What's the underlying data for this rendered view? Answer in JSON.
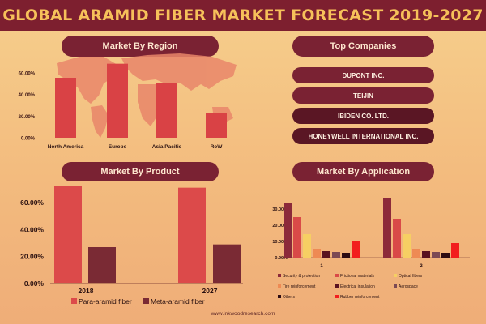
{
  "title": "GLOBAL ARAMID FIBER MARKET FORECAST 2019-2027",
  "footer": "www.inkwoodresearch.com",
  "colors": {
    "banner": "#7d1f2f",
    "title": "#f6c15a",
    "pill": "#7a2233",
    "map": "#e9866a"
  },
  "top_companies": {
    "heading": "Top Companies",
    "items": [
      "DUPONT INC.",
      "TEIJIN",
      "IBIDEN CO. LTD.",
      "HONEYWELL INTERNATIONAL INC."
    ]
  },
  "chart_data": [
    {
      "type": "bar",
      "title": "Market By Region",
      "categories": [
        "North America",
        "Europe",
        "Asia Pacific",
        "RoW"
      ],
      "values": [
        55.5,
        68.5,
        51.0,
        23.0
      ],
      "yticks": [
        "0.00%",
        "20.00%",
        "40.00%",
        "60.00%"
      ],
      "ylim": [
        0,
        70
      ],
      "color": "#d94245"
    },
    {
      "type": "bar",
      "title": "Market By Product",
      "categories": [
        "2018",
        "2027"
      ],
      "series": [
        {
          "name": "Para-aramid fiber",
          "values": [
            72.0,
            71.0
          ],
          "color": "#dc4a4a"
        },
        {
          "name": "Meta-aramid fiber",
          "values": [
            27.0,
            29.0
          ],
          "color": "#7a2a34"
        }
      ],
      "yticks": [
        "0.00%",
        "20.00%",
        "40.00%",
        "60.00%"
      ],
      "ylim": [
        0,
        75
      ]
    },
    {
      "type": "bar",
      "title": "Market By Application",
      "categories": [
        "1",
        "2"
      ],
      "series": [
        {
          "name": "Security & protection",
          "values": [
            34,
            36.5
          ],
          "color": "#8c2a3a"
        },
        {
          "name": "Frictional materials",
          "values": [
            25,
            24
          ],
          "color": "#d94a48"
        },
        {
          "name": "Optical fibers",
          "values": [
            14.5,
            14.5
          ],
          "color": "#f6cf63"
        },
        {
          "name": "Tire reinforcement",
          "values": [
            5,
            5
          ],
          "color": "#ee8a54"
        },
        {
          "name": "Electrical insulation",
          "values": [
            4,
            4
          ],
          "color": "#5a1220"
        },
        {
          "name": "Aerospace",
          "values": [
            3.5,
            3.5
          ],
          "color": "#7c4a54"
        },
        {
          "name": "Others",
          "values": [
            3,
            3
          ],
          "color": "#2e0c12"
        },
        {
          "name": "Rubber reinforcement",
          "values": [
            10,
            9
          ],
          "color": "#f21e1e"
        }
      ],
      "yticks": [
        "0.00%",
        "10.00%",
        "20.00%",
        "30.00%"
      ],
      "ylim": [
        0,
        40
      ]
    }
  ]
}
